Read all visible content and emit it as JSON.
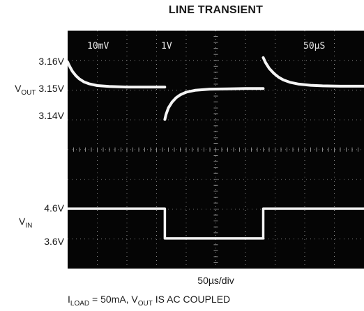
{
  "chart_data": {
    "type": "line",
    "title": "LINE TRANSIENT",
    "xlabel": "50µs/div",
    "condition": {
      "i_main": "I",
      "i_sub": "LOAD",
      "mid": " = 50mA, V",
      "v_sub": "OUT",
      "tail": " IS AC COUPLED"
    },
    "screen_text": {
      "ch1_scale": "10mV",
      "ch2_scale": "1V",
      "timebase": "50µS"
    },
    "y_labels": {
      "vout_main": "V",
      "vout_sub": "OUT",
      "vout_3_16": "3.16V",
      "vout_3_15": "3.15V",
      "vout_3_14": "3.14V",
      "vin_main": "V",
      "vin_sub": "IN",
      "vin_4_6": "4.6V",
      "vin_3_6": "3.6V"
    },
    "grid": {
      "x_divisions": 10,
      "y_divisions": 8,
      "visible": true
    },
    "colors": {
      "screen": "#050505",
      "trace": "#f4f4f4",
      "grid": "#8a8a8a"
    },
    "xlim_us": [
      0,
      500
    ],
    "series": [
      {
        "name": "VOUT",
        "x_us": [
          0,
          3,
          8,
          14,
          20,
          28,
          36,
          50,
          70,
          100,
          130,
          163.9,
          164,
          166,
          170,
          176,
          183,
          190,
          200,
          215,
          240,
          270,
          300,
          329.9,
          330,
          334,
          340,
          348,
          356,
          364,
          375,
          390,
          410,
          430,
          460,
          500
        ],
        "y_v": [
          3.1586,
          3.1573,
          3.1555,
          3.154,
          3.1529,
          3.1519,
          3.1513,
          3.1507,
          3.1504,
          3.1502,
          3.1502,
          3.1502,
          3.1393,
          3.141,
          3.1432,
          3.1451,
          3.1466,
          3.1476,
          3.1485,
          3.1491,
          3.1495,
          3.1496,
          3.1497,
          3.1497,
          3.1601,
          3.1584,
          3.1565,
          3.1548,
          3.1535,
          3.1526,
          3.1518,
          3.1512,
          3.1508,
          3.1506,
          3.1505,
          3.1505
        ]
      },
      {
        "name": "VIN",
        "x_us": [
          0,
          164,
          164,
          330,
          330,
          500
        ],
        "y_v": [
          4.6,
          4.6,
          3.6,
          3.6,
          4.6,
          4.6
        ]
      }
    ]
  }
}
